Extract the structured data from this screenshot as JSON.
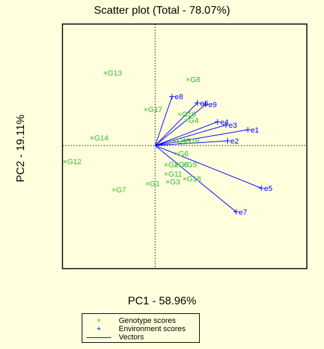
{
  "chart_data": {
    "type": "scatter",
    "title": "Scatter plot (Total - 78.07%)",
    "xlabel": "PC1 - 58.96%",
    "ylabel": "PC2 - 19.11%",
    "xlim": [
      -0.55,
      0.9
    ],
    "ylim": [
      -0.78,
      0.77
    ],
    "origin_lines": "dashed",
    "legend_position": "bottom-center",
    "colors": {
      "genotype": "#33bb33",
      "environment": "#0000ff",
      "vectors": "#0000ff",
      "background": "#ffffdd"
    },
    "series": [
      {
        "name": "Genotype scores",
        "marker": "x",
        "points": [
          {
            "label": "G1",
            "x": -0.05,
            "y": -0.24
          },
          {
            "label": "G2",
            "x": 0.06,
            "y": -0.12
          },
          {
            "label": "G3",
            "x": 0.07,
            "y": -0.23
          },
          {
            "label": "G4",
            "x": 0.18,
            "y": 0.16
          },
          {
            "label": "G5",
            "x": 0.12,
            "y": -0.12
          },
          {
            "label": "G6",
            "x": 0.12,
            "y": -0.05
          },
          {
            "label": "G7",
            "x": -0.25,
            "y": -0.28
          },
          {
            "label": "G8",
            "x": 0.19,
            "y": 0.42
          },
          {
            "label": "G9",
            "x": 0.17,
            "y": -0.12
          },
          {
            "label": "G10",
            "x": 0.14,
            "y": 0.2
          },
          {
            "label": "G11",
            "x": 0.06,
            "y": -0.18
          },
          {
            "label": "G12",
            "x": -0.54,
            "y": -0.1
          },
          {
            "label": "G13",
            "x": -0.3,
            "y": 0.46
          },
          {
            "label": "G14",
            "x": -0.38,
            "y": 0.05
          },
          {
            "label": "G15",
            "x": 0.11,
            "y": 0.03
          },
          {
            "label": "G16",
            "x": 0.16,
            "y": 0.03
          },
          {
            "label": "G17",
            "x": -0.06,
            "y": 0.23
          },
          {
            "label": "G18",
            "x": 0.17,
            "y": -0.21
          }
        ]
      },
      {
        "name": "Environment scores",
        "marker": "+",
        "points": [
          {
            "label": "e1",
            "x": 0.55,
            "y": 0.1
          },
          {
            "label": "e2",
            "x": 0.43,
            "y": 0.03
          },
          {
            "label": "e3",
            "x": 0.42,
            "y": 0.13
          },
          {
            "label": "e4",
            "x": 0.37,
            "y": 0.15
          },
          {
            "label": "e5",
            "x": 0.63,
            "y": -0.27
          },
          {
            "label": "e6",
            "x": 0.25,
            "y": 0.27
          },
          {
            "label": "e7",
            "x": 0.48,
            "y": -0.42
          },
          {
            "label": "e8",
            "x": 0.1,
            "y": 0.31
          },
          {
            "label": "e9",
            "x": 0.3,
            "y": 0.26
          }
        ]
      },
      {
        "name": "Vectors",
        "marker": "line",
        "from_origin_to": "Environment scores"
      }
    ]
  }
}
